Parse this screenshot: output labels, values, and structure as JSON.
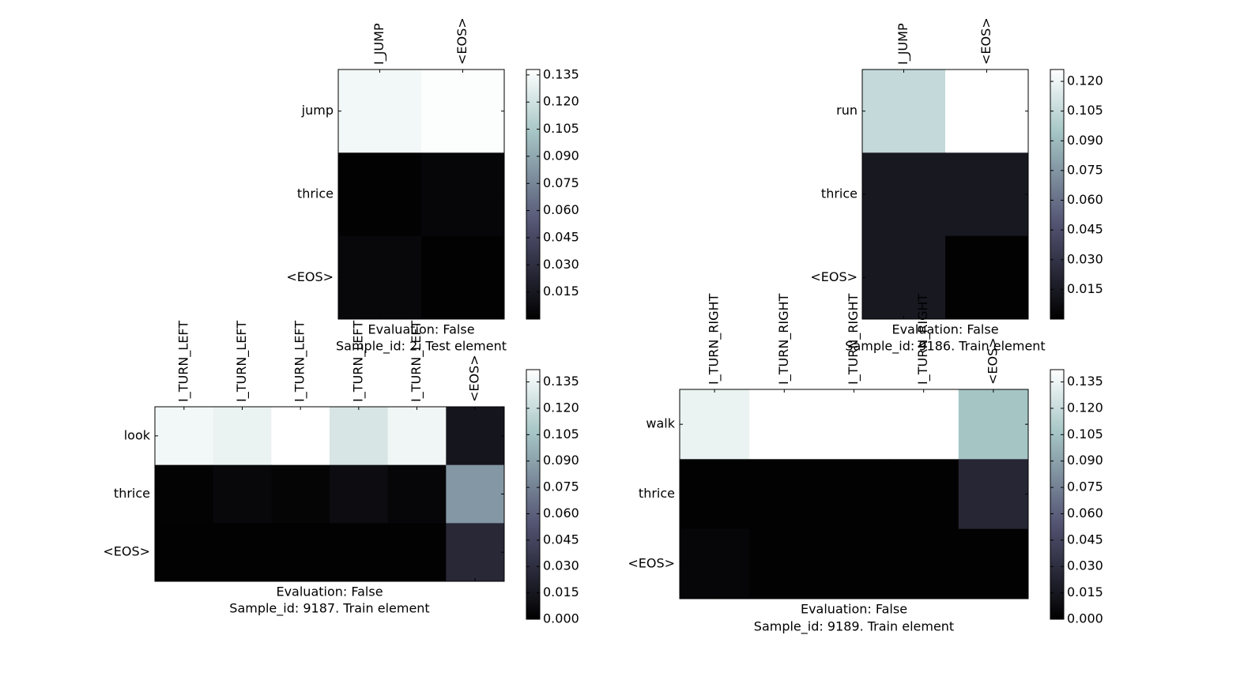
{
  "chart_data": [
    {
      "type": "heatmap",
      "x_labels": [
        "I_JUMP",
        "<EOS>"
      ],
      "y_labels": [
        "jump",
        "thrice",
        "<EOS>"
      ],
      "values": [
        [
          0.133,
          0.137
        ],
        [
          0.001,
          0.004
        ],
        [
          0.005,
          0.001
        ]
      ],
      "caption": [
        "Evaluation: False",
        "Sample_id: 2. Test element"
      ],
      "colorbar": {
        "vmin": 0.0,
        "vmax": 0.138,
        "ticks": [
          0.015,
          0.03,
          0.045,
          0.06,
          0.075,
          0.09,
          0.105,
          0.12,
          0.135
        ],
        "tick_labels": [
          "0.015",
          "0.030",
          "0.045",
          "0.060",
          "0.075",
          "0.090",
          "0.105",
          "0.120",
          "0.135"
        ]
      },
      "colormap": "bone"
    },
    {
      "type": "heatmap",
      "x_labels": [
        "I_JUMP",
        "<EOS>"
      ],
      "y_labels": [
        "run",
        "thrice",
        "<EOS>"
      ],
      "values": [
        [
          0.105,
          0.126
        ],
        [
          0.014,
          0.014
        ],
        [
          0.014,
          0.001
        ]
      ],
      "caption": [
        "Evaluation: False",
        "Sample_id: 9186. Train element"
      ],
      "colorbar": {
        "vmin": 0.0,
        "vmax": 0.126,
        "ticks": [
          0.015,
          0.03,
          0.045,
          0.06,
          0.075,
          0.09,
          0.105,
          0.12
        ],
        "tick_labels": [
          "0.015",
          "0.030",
          "0.045",
          "0.060",
          "0.075",
          "0.090",
          "0.105",
          "0.120"
        ]
      },
      "colormap": "bone"
    },
    {
      "type": "heatmap",
      "x_labels": [
        "I_TURN_LEFT",
        "I_TURN_LEFT",
        "I_TURN_LEFT",
        "I_TURN_LEFT",
        "I_TURN_LEFT",
        "<EOS>"
      ],
      "y_labels": [
        "look",
        "thrice",
        "<EOS>"
      ],
      "values": [
        [
          0.137,
          0.134,
          0.142,
          0.126,
          0.136,
          0.014
        ],
        [
          0.002,
          0.005,
          0.003,
          0.008,
          0.004,
          0.085
        ],
        [
          0.001,
          0.001,
          0.001,
          0.001,
          0.001,
          0.026
        ]
      ],
      "caption": [
        "Evaluation: False",
        "Sample_id: 9187. Train element"
      ],
      "colorbar": {
        "vmin": 0.0,
        "vmax": 0.142,
        "ticks": [
          0.0,
          0.015,
          0.03,
          0.045,
          0.06,
          0.075,
          0.09,
          0.105,
          0.12,
          0.135
        ],
        "tick_labels": [
          "0.000",
          "0.015",
          "0.030",
          "0.045",
          "0.060",
          "0.075",
          "0.090",
          "0.105",
          "0.120",
          "0.135"
        ]
      },
      "colormap": "bone"
    },
    {
      "type": "heatmap",
      "x_labels": [
        "I_TURN_RIGHT",
        "I_TURN_RIGHT",
        "I_TURN_RIGHT",
        "I_TURN_RIGHT",
        "<EOS>"
      ],
      "y_labels": [
        "walk",
        "thrice",
        "<EOS>"
      ],
      "values": [
        [
          0.134,
          0.142,
          0.142,
          0.142,
          0.106
        ],
        [
          0.001,
          0.001,
          0.001,
          0.001,
          0.025
        ],
        [
          0.004,
          0.001,
          0.001,
          0.001,
          0.001
        ]
      ],
      "caption": [
        "Evaluation: False",
        "Sample_id: 9189. Train element"
      ],
      "colorbar": {
        "vmin": 0.0,
        "vmax": 0.142,
        "ticks": [
          0.0,
          0.015,
          0.03,
          0.045,
          0.06,
          0.075,
          0.09,
          0.105,
          0.12,
          0.135
        ],
        "tick_labels": [
          "0.000",
          "0.015",
          "0.030",
          "0.045",
          "0.060",
          "0.075",
          "0.090",
          "0.105",
          "0.120",
          "0.135"
        ]
      },
      "colormap": "bone"
    }
  ]
}
